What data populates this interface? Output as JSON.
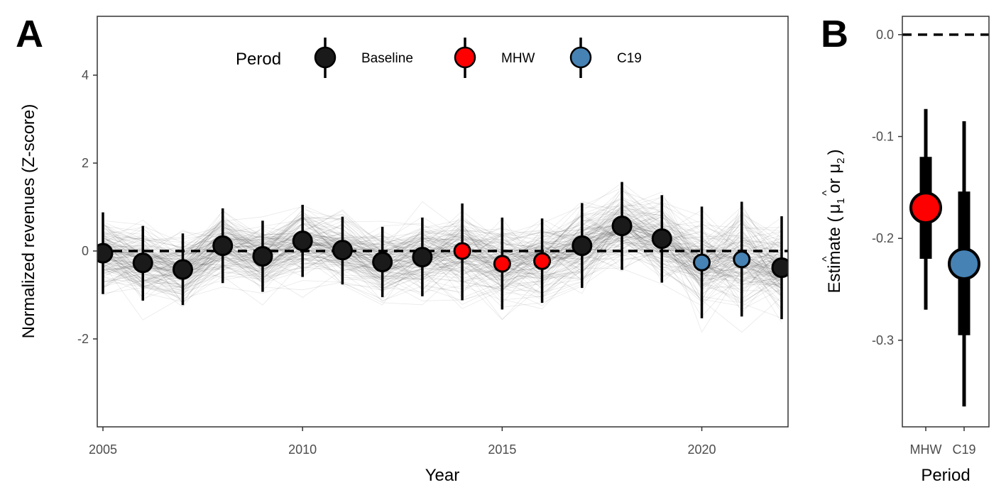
{
  "chart_data": [
    {
      "panel": "A",
      "type": "scatter",
      "xlabel": "Year",
      "ylabel": "Normalized revenues (Z-score)",
      "xlim": [
        2005,
        2022
      ],
      "ylim": [
        -4,
        5.3
      ],
      "x_ticks": [
        2005,
        2010,
        2015,
        2020
      ],
      "y_ticks": [
        -2,
        0,
        2,
        4
      ],
      "reference_line": 0,
      "grid": false,
      "legend": {
        "title": "Perod",
        "placement": "top-center",
        "entries": [
          "Baseline",
          "MHW",
          "C19"
        ]
      },
      "background_lines": "many thin grey individual-series lines (fisheries) spanning 2005-2022",
      "colors": {
        "Baseline": "#1a1a1a",
        "MHW": "#ff0000",
        "C19": "#4682b4"
      },
      "points": [
        {
          "x": 2005,
          "y": -0.05,
          "lo": -0.98,
          "hi": 0.88,
          "period": "Baseline"
        },
        {
          "x": 2006,
          "y": -0.27,
          "lo": -1.13,
          "hi": 0.57,
          "period": "Baseline"
        },
        {
          "x": 2007,
          "y": -0.42,
          "lo": -1.23,
          "hi": 0.4,
          "period": "Baseline"
        },
        {
          "x": 2008,
          "y": 0.12,
          "lo": -0.73,
          "hi": 0.97,
          "period": "Baseline"
        },
        {
          "x": 2009,
          "y": -0.12,
          "lo": -0.93,
          "hi": 0.69,
          "period": "Baseline"
        },
        {
          "x": 2010,
          "y": 0.23,
          "lo": -0.59,
          "hi": 1.05,
          "period": "Baseline"
        },
        {
          "x": 2011,
          "y": 0.02,
          "lo": -0.76,
          "hi": 0.78,
          "period": "Baseline"
        },
        {
          "x": 2012,
          "y": -0.25,
          "lo": -1.05,
          "hi": 0.55,
          "period": "Baseline"
        },
        {
          "x": 2013,
          "y": -0.14,
          "lo": -1.03,
          "hi": 0.76,
          "period": "Baseline"
        },
        {
          "x": 2014,
          "y": 0.0,
          "lo": -1.12,
          "hi": 1.08,
          "period": "MHW"
        },
        {
          "x": 2015,
          "y": -0.29,
          "lo": -1.33,
          "hi": 0.76,
          "period": "MHW"
        },
        {
          "x": 2016,
          "y": -0.23,
          "lo": -1.18,
          "hi": 0.74,
          "period": "MHW"
        },
        {
          "x": 2017,
          "y": 0.12,
          "lo": -0.84,
          "hi": 1.09,
          "period": "Baseline"
        },
        {
          "x": 2018,
          "y": 0.57,
          "lo": -0.43,
          "hi": 1.57,
          "period": "Baseline"
        },
        {
          "x": 2019,
          "y": 0.28,
          "lo": -0.72,
          "hi": 1.27,
          "period": "Baseline"
        },
        {
          "x": 2020,
          "y": -0.26,
          "lo": -1.53,
          "hi": 1.01,
          "period": "C19"
        },
        {
          "x": 2021,
          "y": -0.19,
          "lo": -1.49,
          "hi": 1.12,
          "period": "C19"
        },
        {
          "x": 2022,
          "y": -0.38,
          "lo": -1.55,
          "hi": 0.79,
          "period": "Baseline"
        }
      ]
    },
    {
      "panel": "B",
      "type": "scatter",
      "xlabel": "Period",
      "ylabel_prefix": "Estimate (",
      "ylabel_mu1": "μ",
      "ylabel_sub1": "1",
      "ylabel_or": " or ",
      "ylabel_mu2": "μ",
      "ylabel_sub2": "2",
      "ylabel_suffix": ")",
      "hat": "^",
      "ylim": [
        -0.385,
        0.018
      ],
      "y_ticks": [
        0.0,
        -0.1,
        -0.2,
        -0.3
      ],
      "y_tick_labels": [
        "0.0",
        "-0.1",
        "-0.2",
        "-0.3"
      ],
      "reference_line": 0,
      "categories": [
        "MHW",
        "C19"
      ],
      "points": [
        {
          "category": "MHW",
          "estimate": -0.17,
          "inner_lo": -0.22,
          "inner_hi": -0.12,
          "outer_lo": -0.27,
          "outer_hi": -0.073,
          "color": "#ff0000"
        },
        {
          "category": "C19",
          "estimate": -0.225,
          "inner_lo": -0.295,
          "inner_hi": -0.154,
          "outer_lo": -0.365,
          "outer_hi": -0.085,
          "color": "#4682b4"
        }
      ]
    }
  ]
}
